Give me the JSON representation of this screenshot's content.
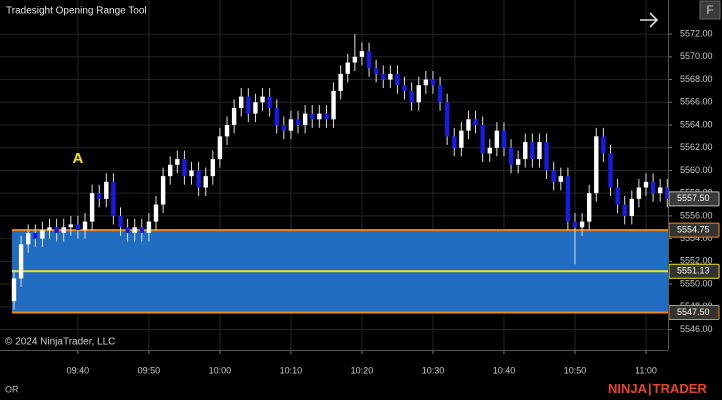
{
  "chart_data": {
    "type": "candlestick",
    "title": "Tradesight Opening Range Tool",
    "annotation": {
      "text": "A",
      "at": 9,
      "value": 5561
    },
    "up_color": "#ffffff",
    "down_color": "#1a1ae6",
    "grid": true,
    "xlim": [
      -1.97,
      92.1
    ],
    "ylim": [
      5544.2,
      5575
    ],
    "xticks": [
      {
        "value": 9,
        "label": "09:40"
      },
      {
        "value": 19,
        "label": "09:50"
      },
      {
        "value": 29,
        "label": "10:00"
      },
      {
        "value": 39,
        "label": "10:10"
      },
      {
        "value": 49,
        "label": "10:20"
      },
      {
        "value": 59,
        "label": "10:30"
      },
      {
        "value": 69,
        "label": "10:40"
      },
      {
        "value": 79,
        "label": "10:50"
      },
      {
        "value": 89,
        "label": "11:00"
      }
    ],
    "yticks": [
      {
        "value": 5546,
        "label": "5546.00"
      },
      {
        "value": 5548,
        "label": "5548.00"
      },
      {
        "value": 5550,
        "label": "5550.00"
      },
      {
        "value": 5552,
        "label": "5552.00"
      },
      {
        "value": 5554,
        "label": "5554.00"
      },
      {
        "value": 5556,
        "label": "5556.00"
      },
      {
        "value": 5558,
        "label": "5558.00"
      },
      {
        "value": 5560,
        "label": "5560.00"
      },
      {
        "value": 5562,
        "label": "5562.00"
      },
      {
        "value": 5564,
        "label": "5564.00"
      },
      {
        "value": 5566,
        "label": "5566.00"
      },
      {
        "value": 5568,
        "label": "5568.00"
      },
      {
        "value": 5570,
        "label": "5570.00"
      },
      {
        "value": 5572,
        "label": "5572.00"
      }
    ],
    "open": [
      5548.5,
      5550.5,
      5553.5,
      5554.5,
      5554,
      5554.75,
      5555,
      5554.5,
      5555,
      5555.25,
      5554.75,
      5555.5,
      5558,
      5557.5,
      5559,
      5556,
      5555,
      5554.5,
      5555,
      5554.5,
      5555.5,
      5557,
      5559.5,
      5560.5,
      5561,
      5559.5,
      5560,
      5558.5,
      5559.5,
      5561,
      5563,
      5564,
      5565.5,
      5566.5,
      5565,
      5566,
      5566.5,
      5565.5,
      5564,
      5563.5,
      5564.5,
      5564,
      5565,
      5564.5,
      5565,
      5564.5,
      5567,
      5568.5,
      5569.5,
      5570,
      5570.5,
      5569,
      5568.5,
      5568,
      5568.5,
      5567.5,
      5567,
      5566,
      5567.5,
      5568,
      5567.5,
      5566,
      5563,
      5562,
      5563.5,
      5564.5,
      5564,
      5561.5,
      5562,
      5563.5,
      5562,
      5560.5,
      5561,
      5562.5,
      5561,
      5562.5,
      5560,
      5559,
      5559.5,
      5555.5,
      5555,
      5555.5,
      5558,
      5563,
      5561.5,
      5558.5,
      5557,
      5556,
      5557.5,
      5558.5,
      5559,
      5558,
      5558.5
    ],
    "high": [
      5551.25,
      5554.25,
      5555.25,
      5555.25,
      5555.5,
      5555.75,
      5555.75,
      5555.75,
      5556,
      5556,
      5556.25,
      5558.75,
      5558.75,
      5559.75,
      5559.75,
      5556.75,
      5555.75,
      5555.75,
      5555.75,
      5556.25,
      5557.75,
      5560.25,
      5561.25,
      5561.75,
      5561.75,
      5560.75,
      5560.75,
      5560.25,
      5561.75,
      5563.75,
      5564.75,
      5566.25,
      5567.25,
      5567.25,
      5566.75,
      5567.25,
      5567.25,
      5566.25,
      5564.75,
      5565.25,
      5565.25,
      5565.75,
      5565.75,
      5565.75,
      5565.75,
      5567.75,
      5569.25,
      5570.25,
      5572,
      5571.25,
      5571.25,
      5569.75,
      5569.25,
      5569.25,
      5569.25,
      5568.25,
      5567.75,
      5568.25,
      5568.75,
      5568.75,
      5568.25,
      5566.75,
      5563.75,
      5564.25,
      5565.25,
      5565.25,
      5564.75,
      5562.75,
      5564.25,
      5564.25,
      5562.75,
      5561.75,
      5563.25,
      5563.25,
      5563.25,
      5563.25,
      5560.75,
      5560.25,
      5560.25,
      5556.25,
      5556.25,
      5558.75,
      5563.75,
      5563.75,
      5562.25,
      5559.25,
      5557.75,
      5558.25,
      5559.25,
      5559.75,
      5559.75,
      5559.25,
      5559.25
    ],
    "low": [
      5547.75,
      5549.75,
      5552.75,
      5553.25,
      5553.25,
      5554,
      5553.75,
      5553.75,
      5554.25,
      5554,
      5554,
      5554.75,
      5556.75,
      5556.75,
      5555.25,
      5554.25,
      5553.75,
      5553.75,
      5553.75,
      5553.75,
      5554.75,
      5556.25,
      5558.75,
      5559.75,
      5558.75,
      5558.75,
      5557.75,
      5557.75,
      5558.75,
      5560.25,
      5562.25,
      5563.25,
      5564.75,
      5564.25,
      5564.25,
      5565.25,
      5564.75,
      5563.25,
      5562.75,
      5562.75,
      5563.25,
      5563.25,
      5563.75,
      5563.75,
      5563.75,
      5563.75,
      5566.25,
      5567.75,
      5568.75,
      5569.25,
      5568.25,
      5567.75,
      5567.25,
      5567.25,
      5566.75,
      5566.25,
      5565.25,
      5565.25,
      5566.75,
      5566.75,
      5565.25,
      5562.25,
      5561.25,
      5561.25,
      5562.75,
      5563.25,
      5560.75,
      5560.75,
      5561.25,
      5561.25,
      5559.75,
      5559.75,
      5560.25,
      5560.25,
      5560.25,
      5559.25,
      5558.25,
      5558.25,
      5554.75,
      5551.75,
      5554.25,
      5554.75,
      5557.25,
      5560.75,
      5557.75,
      5556.25,
      5555.25,
      5555.25,
      5556.75,
      5557.75,
      5557.25,
      5557.25,
      5556.75
    ],
    "close": [
      5550.5,
      5553.5,
      5554.5,
      5554,
      5554.75,
      5555,
      5554.5,
      5555,
      5555.25,
      5554.75,
      5555.5,
      5558,
      5557.5,
      5559,
      5556,
      5555,
      5554.5,
      5555,
      5554.5,
      5555.5,
      5557,
      5559.5,
      5560.5,
      5561,
      5559.5,
      5560,
      5558.5,
      5559.5,
      5561,
      5563,
      5564,
      5565.5,
      5566.5,
      5565,
      5566,
      5566.5,
      5565.5,
      5564,
      5563.5,
      5564.5,
      5564,
      5565,
      5564.5,
      5565,
      5564.5,
      5567,
      5568.5,
      5569.5,
      5570,
      5570.5,
      5569,
      5568.5,
      5568,
      5568.5,
      5567.5,
      5567,
      5566,
      5567.5,
      5568,
      5567.5,
      5566,
      5563,
      5562,
      5563.5,
      5564.5,
      5564,
      5561.5,
      5562,
      5563.5,
      5562,
      5560.5,
      5561,
      5562.5,
      5561,
      5562.5,
      5560,
      5559,
      5559.5,
      5555.5,
      5555,
      5555.5,
      5558,
      5563,
      5561.5,
      5558.5,
      5557,
      5556,
      5557.5,
      5558.5,
      5559,
      5558,
      5558.5,
      5557.5
    ],
    "last_price": {
      "value": 5557.5,
      "label": "5557.50"
    },
    "opening_range": {
      "high": 5554.75,
      "mid": 5551.13,
      "low": {
        "value": 5547.5,
        "label": "5547.50"
      },
      "fill": "#1f6cc0",
      "border_color": "#f08a1c",
      "mid_color": "#f2e41c"
    }
  },
  "toolbar": {
    "button": "F"
  },
  "footer": {
    "copyright": "© 2024 NinjaTrader, LLC",
    "status": "OR",
    "logo_left": "NINJA",
    "logo_right": "TRADER"
  }
}
